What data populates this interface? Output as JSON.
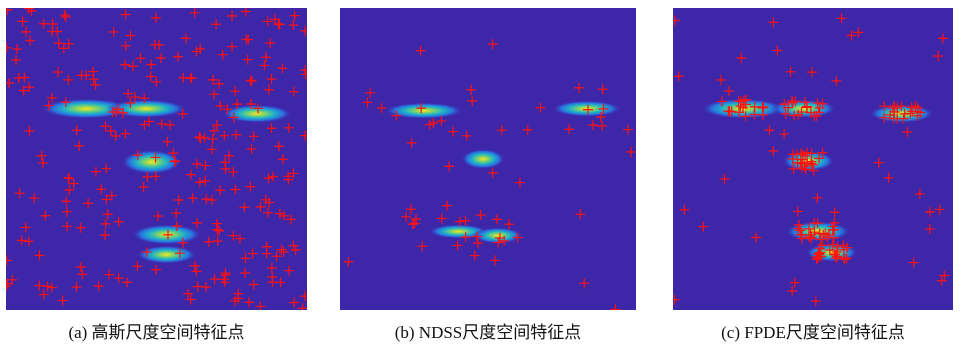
{
  "figure": {
    "panels": [
      {
        "caption": "(a) 高斯尺度空间特征点"
      },
      {
        "caption": "(b) NDSS尺度空间特征点"
      },
      {
        "caption": "(c) FPDE尺度空间特征点"
      }
    ]
  }
}
